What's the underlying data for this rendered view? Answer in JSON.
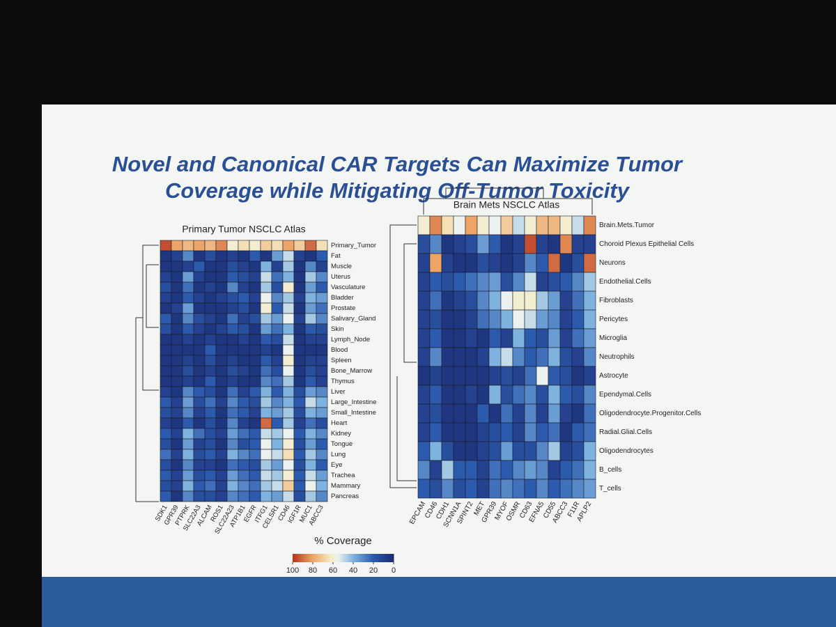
{
  "slide": {
    "title_lines": [
      "Novel and Canonical CAR Targets Can Maximize Tumor",
      "Coverage while Mitigating Off-Tumor Toxicity"
    ]
  },
  "colorbar": {
    "title": "% Coverage",
    "lim": [
      100,
      0
    ],
    "ticks": [
      100,
      80,
      60,
      40,
      20,
      0
    ],
    "stops": [
      {
        "value": 0,
        "color": "#1b2a72"
      },
      {
        "value": 20,
        "color": "#2c5aad"
      },
      {
        "value": 40,
        "color": "#7fb3df"
      },
      {
        "value": 55,
        "color": "#eaf1ee"
      },
      {
        "value": 62,
        "color": "#f6ecc6"
      },
      {
        "value": 80,
        "color": "#eda466"
      },
      {
        "value": 100,
        "color": "#b5321f"
      }
    ]
  },
  "chart_data": [
    {
      "type": "heatmap",
      "title": "Primary Tumor NSCLC Atlas",
      "x": [
        "SDK1",
        "GPR39",
        "PTPRK",
        "SLC22A3",
        "ALCAM",
        "ROS1",
        "SLC22A23",
        "ATP1B1",
        "EGFR",
        "ITFG1",
        "CELSR1",
        "CD46",
        "IGF1R",
        "MUC1",
        "ABCC3"
      ],
      "y": [
        "Primary_Tumor",
        "Fat",
        "Muscle",
        "Uterus",
        "Vasculature",
        "Bladder",
        "Prostate",
        "Salivary_Gland",
        "Skin",
        "Lymph_Node",
        "Blood",
        "Spleen",
        "Bone_Marrow",
        "Thymus",
        "Liver",
        "Large_Intestine",
        "Small_Intestine",
        "Heart",
        "Kidney",
        "Tongue",
        "Lung",
        "Eye",
        "Trachea",
        "Mammary",
        "Pancreas"
      ],
      "values": [
        [
          95,
          80,
          75,
          80,
          75,
          85,
          60,
          65,
          60,
          70,
          65,
          80,
          70,
          90,
          65
        ],
        [
          5,
          10,
          30,
          5,
          15,
          5,
          10,
          5,
          20,
          5,
          35,
          50,
          10,
          5,
          20
        ],
        [
          5,
          5,
          10,
          20,
          5,
          5,
          15,
          10,
          5,
          40,
          10,
          45,
          5,
          30,
          10
        ],
        [
          10,
          5,
          35,
          10,
          5,
          5,
          20,
          15,
          10,
          50,
          25,
          40,
          5,
          45,
          30
        ],
        [
          15,
          5,
          25,
          5,
          10,
          5,
          30,
          10,
          5,
          45,
          15,
          60,
          5,
          35,
          20
        ],
        [
          10,
          5,
          20,
          10,
          5,
          10,
          15,
          20,
          10,
          55,
          30,
          45,
          10,
          40,
          35
        ],
        [
          5,
          10,
          35,
          5,
          5,
          5,
          10,
          15,
          5,
          60,
          20,
          50,
          5,
          35,
          25
        ],
        [
          20,
          5,
          30,
          15,
          10,
          5,
          25,
          10,
          15,
          45,
          35,
          55,
          10,
          45,
          30
        ],
        [
          15,
          5,
          20,
          10,
          5,
          10,
          20,
          15,
          5,
          35,
          25,
          40,
          5,
          20,
          15
        ],
        [
          5,
          5,
          10,
          5,
          10,
          5,
          5,
          10,
          5,
          20,
          15,
          50,
          5,
          10,
          10
        ],
        [
          5,
          5,
          5,
          5,
          20,
          5,
          5,
          5,
          5,
          10,
          5,
          55,
          5,
          5,
          5
        ],
        [
          5,
          5,
          10,
          5,
          15,
          5,
          10,
          5,
          5,
          20,
          10,
          60,
          5,
          10,
          10
        ],
        [
          5,
          5,
          15,
          5,
          10,
          5,
          15,
          10,
          5,
          25,
          15,
          55,
          5,
          15,
          10
        ],
        [
          5,
          5,
          10,
          5,
          20,
          5,
          10,
          5,
          5,
          30,
          25,
          45,
          5,
          20,
          10
        ],
        [
          10,
          5,
          30,
          20,
          15,
          5,
          25,
          10,
          20,
          40,
          20,
          40,
          15,
          35,
          30
        ],
        [
          20,
          10,
          35,
          15,
          25,
          10,
          30,
          20,
          15,
          45,
          30,
          40,
          20,
          50,
          40
        ],
        [
          15,
          10,
          30,
          10,
          20,
          5,
          25,
          20,
          10,
          40,
          35,
          45,
          15,
          40,
          35
        ],
        [
          10,
          5,
          20,
          5,
          15,
          5,
          30,
          10,
          5,
          90,
          20,
          45,
          10,
          25,
          15
        ],
        [
          20,
          10,
          40,
          25,
          15,
          10,
          35,
          25,
          20,
          50,
          45,
          55,
          20,
          40,
          30
        ],
        [
          15,
          5,
          35,
          10,
          15,
          5,
          30,
          15,
          20,
          55,
          40,
          60,
          15,
          35,
          20
        ],
        [
          25,
          10,
          40,
          15,
          20,
          10,
          40,
          30,
          25,
          55,
          50,
          65,
          20,
          45,
          30
        ],
        [
          15,
          5,
          30,
          10,
          10,
          5,
          25,
          20,
          15,
          45,
          35,
          55,
          15,
          40,
          20
        ],
        [
          20,
          10,
          35,
          15,
          20,
          10,
          35,
          25,
          20,
          50,
          45,
          60,
          20,
          50,
          35
        ],
        [
          15,
          10,
          40,
          20,
          25,
          10,
          40,
          30,
          25,
          45,
          50,
          70,
          20,
          55,
          40
        ],
        [
          20,
          5,
          30,
          15,
          15,
          10,
          30,
          25,
          20,
          40,
          35,
          50,
          15,
          45,
          30
        ]
      ]
    },
    {
      "type": "heatmap",
      "title": "Brain Mets NSCLC Atlas",
      "x": [
        "EPCAM",
        "CD46",
        "CDH1",
        "SCNN1A",
        "SPINT2",
        "MET",
        "GPR39",
        "MYOF",
        "OSMR",
        "CD63",
        "EFNA5",
        "CD55",
        "ABCC3",
        "F11R",
        "APLP2"
      ],
      "y": [
        "Brain.Mets.Tumor",
        "Choroid Plexus Epithelial Cells",
        "Neurons",
        "Endothelial.Cells",
        "Fibroblasts",
        "Pericytes",
        "Microglia",
        "Neutrophils",
        "Astrocyte",
        "Ependymal.Cells",
        "Oligodendrocyte.Progenitor.Cells",
        "Radial.Glial.Cells",
        "Oligodendrocytes",
        "B_cells",
        "T_cells"
      ],
      "values": [
        [
          60,
          85,
          65,
          55,
          80,
          60,
          55,
          70,
          50,
          60,
          75,
          75,
          60,
          50,
          85
        ],
        [
          15,
          30,
          5,
          10,
          15,
          35,
          20,
          5,
          10,
          95,
          10,
          5,
          85,
          10,
          10
        ],
        [
          10,
          80,
          10,
          5,
          5,
          15,
          10,
          5,
          10,
          30,
          20,
          90,
          5,
          15,
          90
        ],
        [
          10,
          20,
          15,
          20,
          25,
          30,
          35,
          15,
          30,
          50,
          10,
          15,
          20,
          30,
          45
        ],
        [
          10,
          25,
          5,
          10,
          15,
          30,
          40,
          55,
          60,
          60,
          45,
          35,
          10,
          25,
          40
        ],
        [
          10,
          15,
          5,
          5,
          10,
          25,
          30,
          40,
          55,
          50,
          35,
          30,
          10,
          20,
          40
        ],
        [
          10,
          20,
          5,
          5,
          10,
          5,
          20,
          10,
          40,
          20,
          15,
          35,
          10,
          25,
          35
        ],
        [
          10,
          30,
          5,
          5,
          5,
          10,
          40,
          50,
          30,
          20,
          25,
          40,
          15,
          10,
          30
        ],
        [
          5,
          10,
          5,
          5,
          5,
          5,
          10,
          15,
          10,
          25,
          55,
          20,
          15,
          5,
          10
        ],
        [
          10,
          20,
          5,
          5,
          10,
          5,
          40,
          15,
          25,
          30,
          15,
          40,
          20,
          15,
          30
        ],
        [
          10,
          15,
          5,
          5,
          5,
          20,
          5,
          25,
          10,
          30,
          10,
          35,
          10,
          5,
          25
        ],
        [
          10,
          20,
          5,
          5,
          5,
          10,
          15,
          20,
          10,
          30,
          20,
          25,
          5,
          20,
          25
        ],
        [
          20,
          40,
          15,
          5,
          5,
          10,
          15,
          35,
          15,
          15,
          30,
          45,
          10,
          15,
          40
        ],
        [
          30,
          10,
          45,
          20,
          20,
          10,
          25,
          20,
          30,
          35,
          30,
          10,
          20,
          25,
          40
        ],
        [
          20,
          15,
          30,
          15,
          20,
          10,
          25,
          30,
          25,
          20,
          30,
          20,
          25,
          30,
          35
        ]
      ]
    }
  ]
}
